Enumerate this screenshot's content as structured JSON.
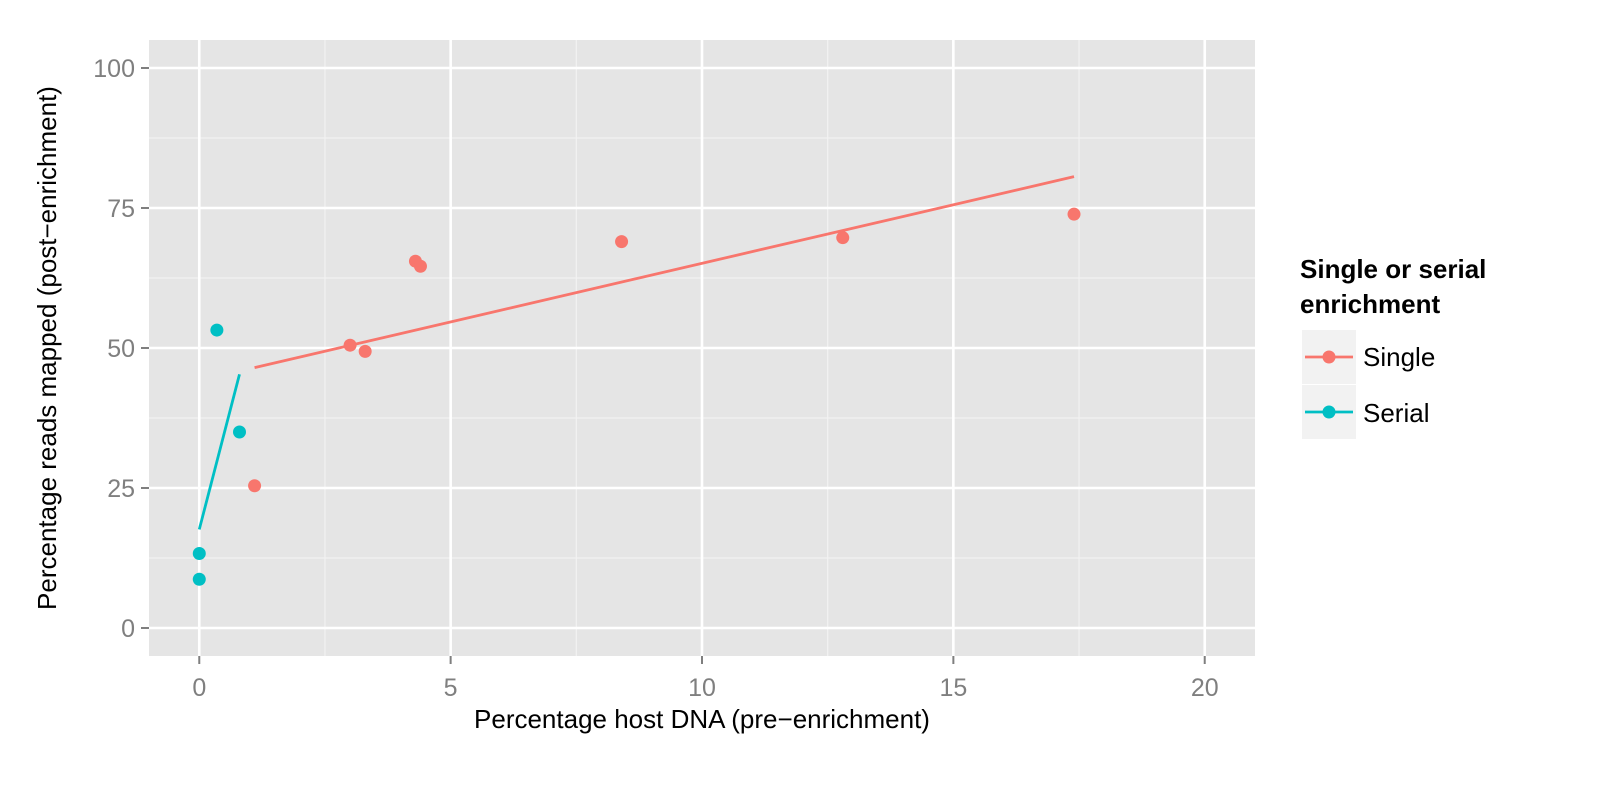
{
  "chart_data": {
    "type": "scatter",
    "title": "",
    "xlabel": "Percentage host DNA (pre−enrichment)",
    "ylabel": "Percentage reads mapped (post−enrichment)",
    "xlim": [
      -1,
      21
    ],
    "ylim": [
      -5,
      105
    ],
    "xticks": [
      0,
      5,
      10,
      15,
      20
    ],
    "yticks": [
      0,
      25,
      50,
      75,
      100
    ],
    "grid": true,
    "background": "#e5e5e5",
    "legend": {
      "title_lines": [
        "Single or serial",
        "enrichment"
      ],
      "position": "right"
    },
    "series": [
      {
        "name": "Single",
        "color": "#f8766d",
        "points": [
          {
            "x": 1.1,
            "y": 25.4
          },
          {
            "x": 3.0,
            "y": 50.5
          },
          {
            "x": 3.3,
            "y": 49.4
          },
          {
            "x": 4.3,
            "y": 65.5
          },
          {
            "x": 4.4,
            "y": 64.6
          },
          {
            "x": 8.4,
            "y": 69.0
          },
          {
            "x": 12.8,
            "y": 69.7
          },
          {
            "x": 17.4,
            "y": 73.9
          }
        ],
        "fit_line": [
          {
            "x": 1.1,
            "y": 46.5
          },
          {
            "x": 17.4,
            "y": 80.6
          }
        ]
      },
      {
        "name": "Serial",
        "color": "#00bfc4",
        "points": [
          {
            "x": 0.0,
            "y": 13.3
          },
          {
            "x": 0.0,
            "y": 8.7
          },
          {
            "x": 0.35,
            "y": 53.2
          },
          {
            "x": 0.8,
            "y": 35.0
          }
        ],
        "fit_line": [
          {
            "x": 0.0,
            "y": 17.6
          },
          {
            "x": 0.8,
            "y": 45.3
          }
        ]
      }
    ]
  }
}
